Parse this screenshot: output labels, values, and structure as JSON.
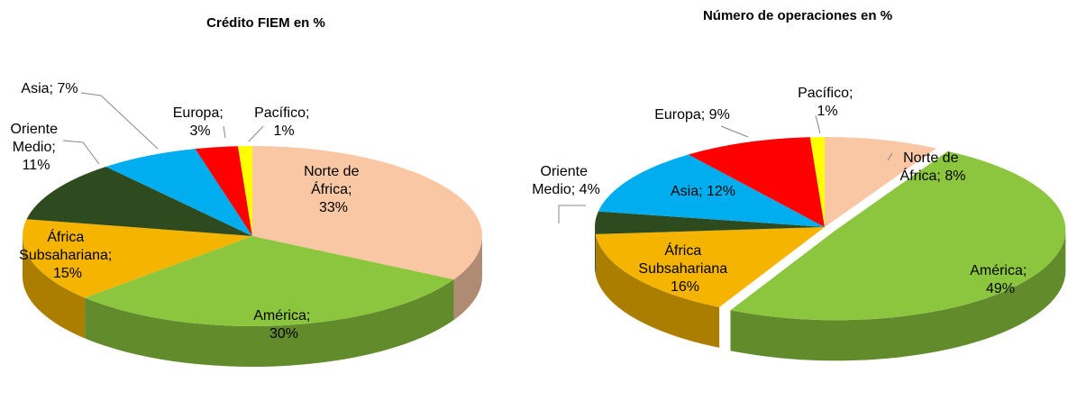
{
  "chart_data": [
    {
      "type": "pie",
      "title": "Crédito FIEM en %",
      "values": [
        33,
        30,
        15,
        11,
        7,
        3,
        1
      ],
      "value_labels": [
        "Norte de África; 33%",
        "América; 30%",
        "África Subsahariana; 15%",
        "Oriente Medio; 11%",
        "Asia; 7%",
        "Europa; 3%",
        "Pacífico; 1%"
      ],
      "colors": [
        "#f9c7a3",
        "#8cc63f",
        "#f5b400",
        "#2e4a1f",
        "#00aeef",
        "#ff0000",
        "#ffff00"
      ]
    },
    {
      "type": "pie",
      "title": "Número de operaciones en %",
      "values": [
        8,
        49,
        16,
        4,
        12,
        9,
        1
      ],
      "value_labels": [
        "Norte de África; 8%",
        "América; 49%",
        "África Subsahariana 16%",
        "Oriente Medio; 4%",
        "Asia; 12%",
        "Europa; 9%",
        "Pacífico; 1%"
      ],
      "colors": [
        "#f9c7a3",
        "#8cc63f",
        "#f5b400",
        "#2e4a1f",
        "#00aeef",
        "#ff0000",
        "#ffff00"
      ]
    }
  ]
}
